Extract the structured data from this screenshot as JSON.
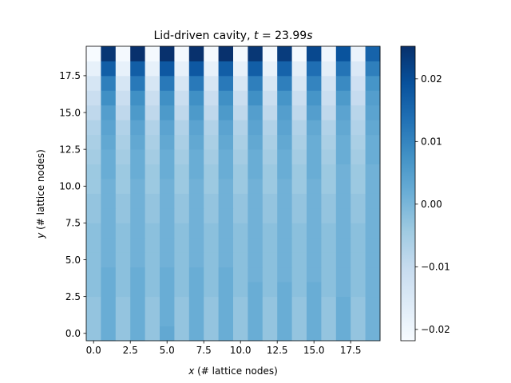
{
  "chart_data": {
    "type": "heatmap",
    "title": "Lid-driven cavity, ",
    "title_t": "t",
    "title_eq": " = 23.99",
    "title_s": "s",
    "xlabel_var": "x",
    "xlabel": " (# lattice nodes)",
    "ylabel_var": "y",
    "ylabel": " (# lattice nodes)",
    "colormap": "Blues",
    "color_low": "#f7fbff",
    "color_high": "#08306b",
    "xlim": [
      -0.5,
      19.5
    ],
    "ylim": [
      -0.5,
      19.5
    ],
    "vmin": -0.0218,
    "vmax": 0.0252,
    "x_ticks": [
      0.0,
      2.5,
      5.0,
      7.5,
      10.0,
      12.5,
      15.0,
      17.5
    ],
    "x_tick_labels": [
      "0.0",
      "2.5",
      "5.0",
      "7.5",
      "10.0",
      "12.5",
      "15.0",
      "17.5"
    ],
    "y_ticks": [
      0.0,
      2.5,
      5.0,
      7.5,
      10.0,
      12.5,
      15.0,
      17.5
    ],
    "y_tick_labels": [
      "0.0",
      "2.5",
      "5.0",
      "7.5",
      "10.0",
      "12.5",
      "15.0",
      "17.5"
    ],
    "colorbar_ticks": [
      -0.02,
      -0.01,
      0.0,
      0.01,
      0.02
    ],
    "colorbar_tick_labels": [
      "−0.02",
      "−0.01",
      "0.00",
      "0.01",
      "0.02"
    ],
    "grid": false,
    "nx": 20,
    "ny": 20,
    "values": [
      [
        -0.003,
        0.002,
        -0.003,
        0.002,
        -0.003,
        0.003,
        -0.003,
        0.002,
        -0.003,
        0.002,
        -0.003,
        0.002,
        -0.003,
        0.002,
        -0.003,
        0.002,
        -0.003,
        0.002,
        -0.003,
        0.001
      ],
      [
        -0.003,
        0.002,
        -0.003,
        0.002,
        -0.003,
        0.002,
        -0.003,
        0.002,
        -0.003,
        0.002,
        -0.003,
        0.002,
        -0.003,
        0.002,
        -0.003,
        0.002,
        -0.003,
        0.002,
        -0.003,
        0.001
      ],
      [
        -0.003,
        0.002,
        -0.003,
        0.002,
        -0.003,
        0.002,
        -0.003,
        0.002,
        -0.003,
        0.002,
        -0.003,
        0.002,
        -0.003,
        0.002,
        -0.003,
        0.002,
        -0.003,
        0.002,
        -0.003,
        0.001
      ],
      [
        -0.002,
        0.002,
        -0.002,
        0.002,
        -0.002,
        0.002,
        -0.002,
        0.002,
        -0.002,
        0.002,
        -0.002,
        0.002,
        -0.002,
        0.002,
        -0.002,
        0.002,
        -0.002,
        0.001,
        -0.002,
        0.001
      ],
      [
        -0.002,
        0.002,
        -0.002,
        0.002,
        -0.002,
        0.002,
        -0.002,
        0.002,
        -0.002,
        0.002,
        -0.002,
        0.001,
        -0.002,
        0.001,
        -0.002,
        0.001,
        -0.002,
        0.001,
        -0.002,
        0.001
      ],
      [
        -0.002,
        0.001,
        -0.002,
        0.001,
        -0.002,
        0.001,
        -0.002,
        0.001,
        -0.002,
        0.001,
        -0.002,
        0.001,
        -0.002,
        0.001,
        -0.002,
        0.001,
        -0.002,
        0.001,
        -0.002,
        0.001
      ],
      [
        -0.002,
        0.001,
        -0.002,
        0.001,
        -0.002,
        0.001,
        -0.002,
        0.001,
        -0.002,
        0.001,
        -0.002,
        0.001,
        -0.002,
        0.001,
        -0.002,
        0.001,
        -0.002,
        0.001,
        -0.002,
        0.001
      ],
      [
        -0.002,
        0.001,
        -0.002,
        0.001,
        -0.002,
        0.001,
        -0.002,
        0.001,
        -0.002,
        0.001,
        -0.002,
        0.001,
        -0.002,
        0.001,
        -0.002,
        0.001,
        -0.002,
        0.001,
        -0.002,
        0.001
      ],
      [
        -0.003,
        0.001,
        -0.003,
        0.001,
        -0.003,
        0.001,
        -0.003,
        0.001,
        -0.003,
        0.001,
        -0.003,
        0.001,
        -0.003,
        0.001,
        -0.003,
        0.001,
        -0.003,
        0.001,
        -0.003,
        0.001
      ],
      [
        -0.003,
        0.001,
        -0.003,
        0.001,
        -0.003,
        0.001,
        -0.003,
        0.001,
        -0.003,
        0.001,
        -0.003,
        0.001,
        -0.003,
        0.001,
        -0.003,
        0.001,
        -0.003,
        0.001,
        -0.003,
        0.001
      ],
      [
        -0.004,
        0.001,
        -0.004,
        0.001,
        -0.004,
        0.001,
        -0.004,
        0.001,
        -0.004,
        0.001,
        -0.004,
        0.001,
        -0.004,
        0.001,
        -0.004,
        0.001,
        -0.004,
        0.001,
        -0.004,
        0.001
      ],
      [
        -0.004,
        0.002,
        -0.004,
        0.002,
        -0.004,
        0.002,
        -0.004,
        0.002,
        -0.004,
        0.002,
        -0.004,
        0.002,
        -0.004,
        0.002,
        -0.004,
        0.002,
        -0.004,
        0.001,
        -0.004,
        0.001
      ],
      [
        -0.005,
        0.002,
        -0.005,
        0.002,
        -0.005,
        0.002,
        -0.005,
        0.002,
        -0.005,
        0.002,
        -0.005,
        0.002,
        -0.005,
        0.002,
        -0.005,
        0.002,
        -0.005,
        0.002,
        -0.005,
        0.002
      ],
      [
        -0.006,
        0.003,
        -0.006,
        0.003,
        -0.006,
        0.003,
        -0.006,
        0.003,
        -0.006,
        0.003,
        -0.006,
        0.003,
        -0.006,
        0.003,
        -0.006,
        0.002,
        -0.006,
        0.002,
        -0.006,
        0.002
      ],
      [
        -0.007,
        0.004,
        -0.007,
        0.004,
        -0.007,
        0.004,
        -0.007,
        0.004,
        -0.007,
        0.004,
        -0.007,
        0.004,
        -0.007,
        0.004,
        -0.007,
        0.003,
        -0.007,
        0.003,
        -0.007,
        0.003
      ],
      [
        -0.009,
        0.005,
        -0.009,
        0.006,
        -0.009,
        0.006,
        -0.009,
        0.006,
        -0.009,
        0.006,
        -0.009,
        0.005,
        -0.009,
        0.005,
        -0.009,
        0.005,
        -0.009,
        0.004,
        -0.008,
        0.004
      ],
      [
        -0.011,
        0.008,
        -0.011,
        0.008,
        -0.011,
        0.008,
        -0.011,
        0.008,
        -0.011,
        0.008,
        -0.011,
        0.008,
        -0.011,
        0.007,
        -0.011,
        0.007,
        -0.011,
        0.006,
        -0.01,
        0.005
      ],
      [
        -0.014,
        0.011,
        -0.014,
        0.012,
        -0.014,
        0.012,
        -0.014,
        0.012,
        -0.014,
        0.012,
        -0.014,
        0.011,
        -0.014,
        0.011,
        -0.014,
        0.01,
        -0.013,
        0.009,
        -0.012,
        0.007
      ],
      [
        -0.018,
        0.017,
        -0.018,
        0.017,
        -0.018,
        0.018,
        -0.018,
        0.018,
        -0.018,
        0.017,
        -0.018,
        0.017,
        -0.018,
        0.016,
        -0.017,
        0.014,
        -0.017,
        0.013,
        -0.015,
        0.011
      ],
      [
        -0.022,
        0.024,
        -0.021,
        0.025,
        -0.021,
        0.025,
        -0.021,
        0.025,
        -0.021,
        0.025,
        -0.021,
        0.024,
        -0.021,
        0.023,
        -0.021,
        0.021,
        -0.02,
        0.019,
        -0.019,
        0.016
      ]
    ]
  }
}
